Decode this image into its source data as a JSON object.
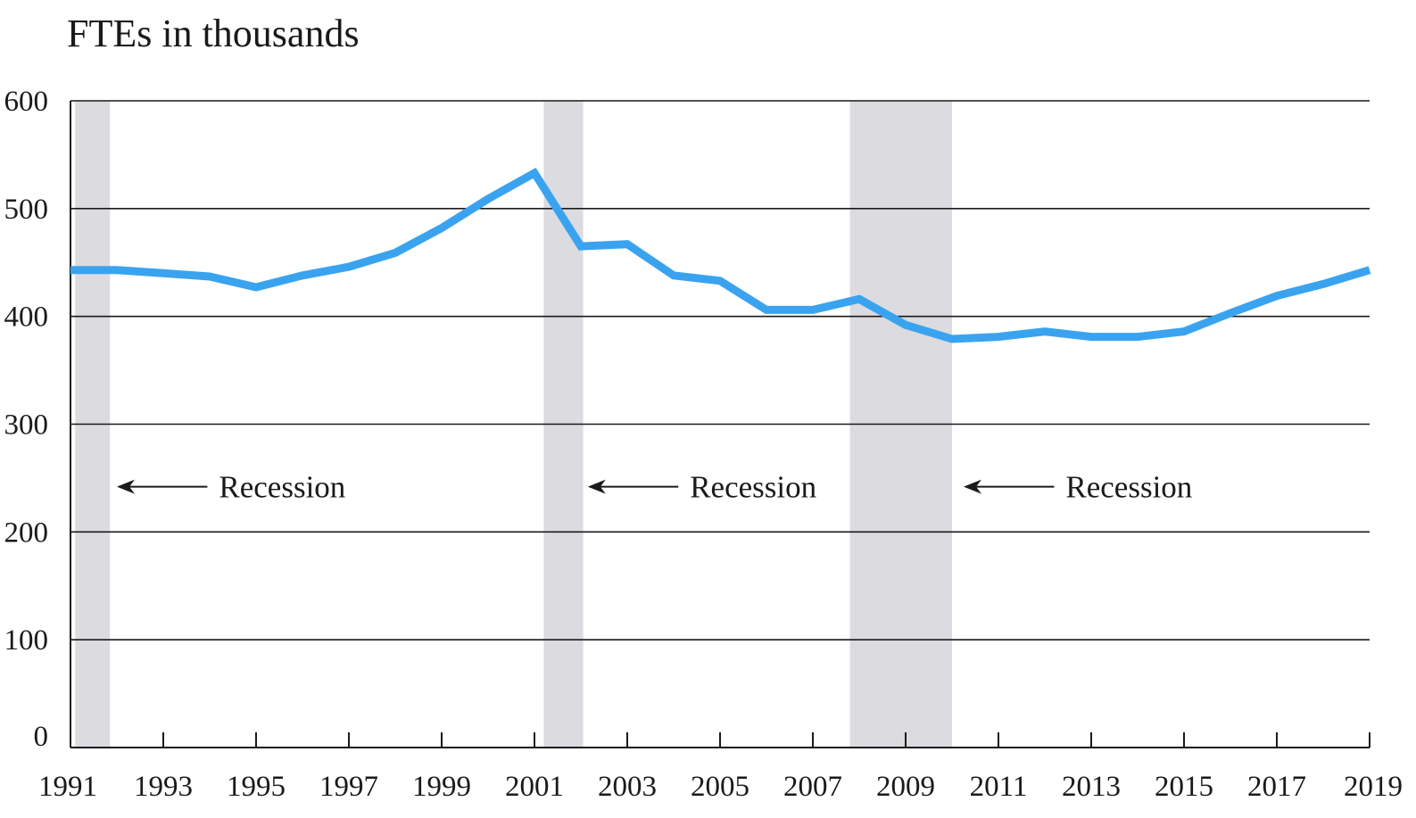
{
  "chart_data": {
    "type": "line",
    "title": "",
    "ylabel": "FTEs in thousands",
    "xlabel": "",
    "ylim": [
      0,
      600
    ],
    "xlim": [
      1991,
      2019
    ],
    "grid": true,
    "y_ticks": [
      0,
      100,
      200,
      300,
      400,
      500,
      600
    ],
    "x_ticks": [
      1991,
      1993,
      1995,
      1997,
      1999,
      2001,
      2003,
      2005,
      2007,
      2009,
      2011,
      2013,
      2015,
      2017,
      2019
    ],
    "series": [
      {
        "color": "#3aa3ef",
        "x": [
          1991,
          1992,
          1993,
          1994,
          1995,
          1996,
          1997,
          1998,
          1999,
          2000,
          2001,
          2002,
          2003,
          2004,
          2005,
          2006,
          2007,
          2008,
          2009,
          2010,
          2011,
          2012,
          2013,
          2014,
          2015,
          2016,
          2017,
          2018,
          2019
        ],
        "values": [
          443,
          443,
          440,
          437,
          427,
          438,
          446,
          459,
          482,
          509,
          533,
          465,
          467,
          438,
          433,
          406,
          406,
          416,
          392,
          379,
          381,
          386,
          381,
          381,
          386,
          403,
          419,
          430,
          443
        ]
      }
    ],
    "recessions": [
      {
        "start": 1991.1,
        "end": 1991.85,
        "color": "#dcdbe0"
      },
      {
        "start": 2001.2,
        "end": 2002.05,
        "color": "#dcdbe0"
      },
      {
        "start": 2007.8,
        "end": 2010.0,
        "color": "#dcdbe0"
      }
    ],
    "annotations": [
      {
        "text": "Recession",
        "arrow_x": [
          1992.0,
          1993.95
        ],
        "text_x": 1994.2,
        "y": 242
      },
      {
        "text": "Recession",
        "arrow_x": [
          2002.15,
          2004.1
        ],
        "text_x": 2004.35,
        "y": 242
      },
      {
        "text": "Recession",
        "arrow_x": [
          2010.25,
          2012.2
        ],
        "text_x": 2012.45,
        "y": 242
      }
    ]
  }
}
